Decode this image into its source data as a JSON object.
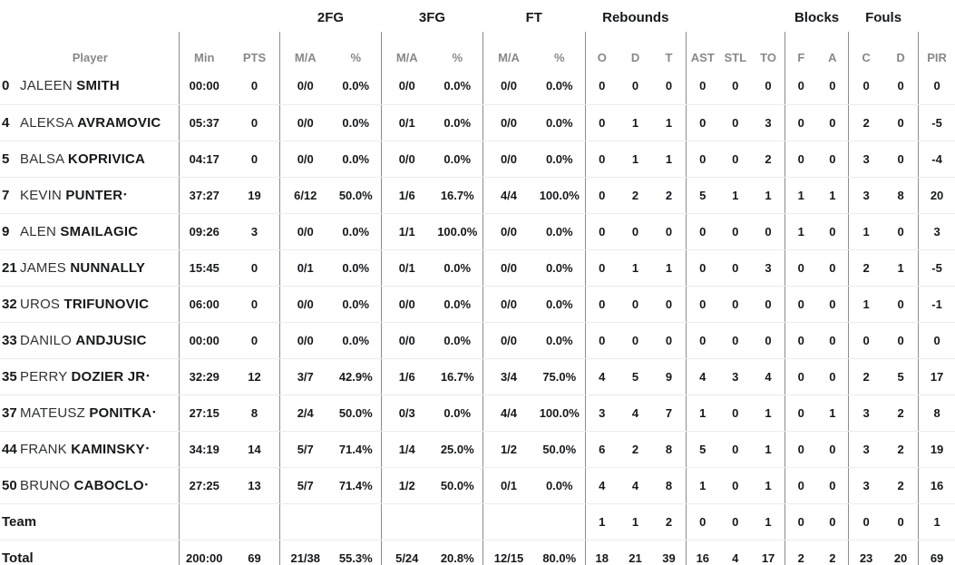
{
  "table": {
    "groups": {
      "fg2": "2FG",
      "fg3": "3FG",
      "ft": "FT",
      "rebounds": "Rebounds",
      "blocks": "Blocks",
      "fouls": "Fouls"
    },
    "columns": {
      "player": "Player",
      "min": "Min",
      "pts": "PTS",
      "ma": "M/A",
      "pct": "%",
      "reb_o": "O",
      "reb_d": "D",
      "reb_t": "T",
      "ast": "AST",
      "stl": "STL",
      "to": "TO",
      "block_f": "F",
      "block_a": "A",
      "foul_c": "C",
      "foul_d": "D",
      "pir": "PIR"
    },
    "starter_mark": "•",
    "colors": {
      "text_dark": "#17181b",
      "text_gray": "#87888c",
      "line_vertical": "#8c8c8f",
      "line_horizontal": "#ececee"
    },
    "players": [
      {
        "num": "0",
        "first": "JALEEN",
        "last": "SMITH",
        "starter": false,
        "min": "00:00",
        "pts": "0",
        "fg2_ma": "0/0",
        "fg2_pct": "0.0%",
        "fg3_ma": "0/0",
        "fg3_pct": "0.0%",
        "ft_ma": "0/0",
        "ft_pct": "0.0%",
        "o": "0",
        "d": "0",
        "t": "0",
        "ast": "0",
        "stl": "0",
        "to": "0",
        "bf": "0",
        "ba": "0",
        "fc": "0",
        "fd": "0",
        "pir": "0"
      },
      {
        "num": "4",
        "first": "ALEKSA",
        "last": "AVRAMOVIC",
        "starter": false,
        "min": "05:37",
        "pts": "0",
        "fg2_ma": "0/0",
        "fg2_pct": "0.0%",
        "fg3_ma": "0/1",
        "fg3_pct": "0.0%",
        "ft_ma": "0/0",
        "ft_pct": "0.0%",
        "o": "0",
        "d": "1",
        "t": "1",
        "ast": "0",
        "stl": "0",
        "to": "3",
        "bf": "0",
        "ba": "0",
        "fc": "2",
        "fd": "0",
        "pir": "-5"
      },
      {
        "num": "5",
        "first": "BALSA",
        "last": "KOPRIVICA",
        "starter": false,
        "min": "04:17",
        "pts": "0",
        "fg2_ma": "0/0",
        "fg2_pct": "0.0%",
        "fg3_ma": "0/0",
        "fg3_pct": "0.0%",
        "ft_ma": "0/0",
        "ft_pct": "0.0%",
        "o": "0",
        "d": "1",
        "t": "1",
        "ast": "0",
        "stl": "0",
        "to": "2",
        "bf": "0",
        "ba": "0",
        "fc": "3",
        "fd": "0",
        "pir": "-4"
      },
      {
        "num": "7",
        "first": "KEVIN",
        "last": "PUNTER",
        "starter": true,
        "min": "37:27",
        "pts": "19",
        "fg2_ma": "6/12",
        "fg2_pct": "50.0%",
        "fg3_ma": "1/6",
        "fg3_pct": "16.7%",
        "ft_ma": "4/4",
        "ft_pct": "100.0%",
        "o": "0",
        "d": "2",
        "t": "2",
        "ast": "5",
        "stl": "1",
        "to": "1",
        "bf": "1",
        "ba": "1",
        "fc": "3",
        "fd": "8",
        "pir": "20"
      },
      {
        "num": "9",
        "first": "ALEN",
        "last": "SMAILAGIC",
        "starter": false,
        "min": "09:26",
        "pts": "3",
        "fg2_ma": "0/0",
        "fg2_pct": "0.0%",
        "fg3_ma": "1/1",
        "fg3_pct": "100.0%",
        "ft_ma": "0/0",
        "ft_pct": "0.0%",
        "o": "0",
        "d": "0",
        "t": "0",
        "ast": "0",
        "stl": "0",
        "to": "0",
        "bf": "1",
        "ba": "0",
        "fc": "1",
        "fd": "0",
        "pir": "3"
      },
      {
        "num": "21",
        "first": "JAMES",
        "last": "NUNNALLY",
        "starter": false,
        "min": "15:45",
        "pts": "0",
        "fg2_ma": "0/1",
        "fg2_pct": "0.0%",
        "fg3_ma": "0/1",
        "fg3_pct": "0.0%",
        "ft_ma": "0/0",
        "ft_pct": "0.0%",
        "o": "0",
        "d": "1",
        "t": "1",
        "ast": "0",
        "stl": "0",
        "to": "3",
        "bf": "0",
        "ba": "0",
        "fc": "2",
        "fd": "1",
        "pir": "-5"
      },
      {
        "num": "32",
        "first": "UROS",
        "last": "TRIFUNOVIC",
        "starter": false,
        "min": "06:00",
        "pts": "0",
        "fg2_ma": "0/0",
        "fg2_pct": "0.0%",
        "fg3_ma": "0/0",
        "fg3_pct": "0.0%",
        "ft_ma": "0/0",
        "ft_pct": "0.0%",
        "o": "0",
        "d": "0",
        "t": "0",
        "ast": "0",
        "stl": "0",
        "to": "0",
        "bf": "0",
        "ba": "0",
        "fc": "1",
        "fd": "0",
        "pir": "-1"
      },
      {
        "num": "33",
        "first": "DANILO",
        "last": "ANDJUSIC",
        "starter": false,
        "min": "00:00",
        "pts": "0",
        "fg2_ma": "0/0",
        "fg2_pct": "0.0%",
        "fg3_ma": "0/0",
        "fg3_pct": "0.0%",
        "ft_ma": "0/0",
        "ft_pct": "0.0%",
        "o": "0",
        "d": "0",
        "t": "0",
        "ast": "0",
        "stl": "0",
        "to": "0",
        "bf": "0",
        "ba": "0",
        "fc": "0",
        "fd": "0",
        "pir": "0"
      },
      {
        "num": "35",
        "first": "PERRY",
        "last": "DOZIER JR",
        "starter": true,
        "min": "32:29",
        "pts": "12",
        "fg2_ma": "3/7",
        "fg2_pct": "42.9%",
        "fg3_ma": "1/6",
        "fg3_pct": "16.7%",
        "ft_ma": "3/4",
        "ft_pct": "75.0%",
        "o": "4",
        "d": "5",
        "t": "9",
        "ast": "4",
        "stl": "3",
        "to": "4",
        "bf": "0",
        "ba": "0",
        "fc": "2",
        "fd": "5",
        "pir": "17"
      },
      {
        "num": "37",
        "first": "MATEUSZ",
        "last": "PONITKA",
        "starter": true,
        "min": "27:15",
        "pts": "8",
        "fg2_ma": "2/4",
        "fg2_pct": "50.0%",
        "fg3_ma": "0/3",
        "fg3_pct": "0.0%",
        "ft_ma": "4/4",
        "ft_pct": "100.0%",
        "o": "3",
        "d": "4",
        "t": "7",
        "ast": "1",
        "stl": "0",
        "to": "1",
        "bf": "0",
        "ba": "1",
        "fc": "3",
        "fd": "2",
        "pir": "8"
      },
      {
        "num": "44",
        "first": "FRANK",
        "last": "KAMINSKY",
        "starter": true,
        "min": "34:19",
        "pts": "14",
        "fg2_ma": "5/7",
        "fg2_pct": "71.4%",
        "fg3_ma": "1/4",
        "fg3_pct": "25.0%",
        "ft_ma": "1/2",
        "ft_pct": "50.0%",
        "o": "6",
        "d": "2",
        "t": "8",
        "ast": "5",
        "stl": "0",
        "to": "1",
        "bf": "0",
        "ba": "0",
        "fc": "3",
        "fd": "2",
        "pir": "19"
      },
      {
        "num": "50",
        "first": "BRUNO",
        "last": "CABOCLO",
        "starter": true,
        "min": "27:25",
        "pts": "13",
        "fg2_ma": "5/7",
        "fg2_pct": "71.4%",
        "fg3_ma": "1/2",
        "fg3_pct": "50.0%",
        "ft_ma": "0/1",
        "ft_pct": "0.0%",
        "o": "4",
        "d": "4",
        "t": "8",
        "ast": "1",
        "stl": "0",
        "to": "1",
        "bf": "0",
        "ba": "0",
        "fc": "3",
        "fd": "2",
        "pir": "16"
      }
    ],
    "summary": [
      {
        "label": "Team",
        "min": "",
        "pts": "",
        "fg2_ma": "",
        "fg2_pct": "",
        "fg3_ma": "",
        "fg3_pct": "",
        "ft_ma": "",
        "ft_pct": "",
        "o": "1",
        "d": "1",
        "t": "2",
        "ast": "0",
        "stl": "0",
        "to": "1",
        "bf": "0",
        "ba": "0",
        "fc": "0",
        "fd": "0",
        "pir": "1"
      },
      {
        "label": "Total",
        "min": "200:00",
        "pts": "69",
        "fg2_ma": "21/38",
        "fg2_pct": "55.3%",
        "fg3_ma": "5/24",
        "fg3_pct": "20.8%",
        "ft_ma": "12/15",
        "ft_pct": "80.0%",
        "o": "18",
        "d": "21",
        "t": "39",
        "ast": "16",
        "stl": "4",
        "to": "17",
        "bf": "2",
        "ba": "2",
        "fc": "23",
        "fd": "20",
        "pir": "69"
      }
    ]
  }
}
